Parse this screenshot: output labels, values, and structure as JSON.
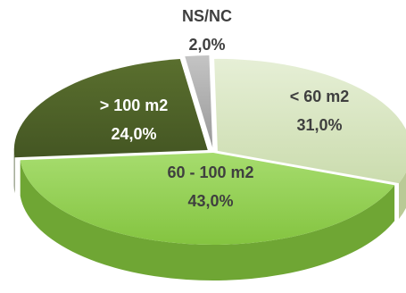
{
  "chart_data": {
    "type": "pie",
    "style": "3d-exploded",
    "slices": [
      {
        "name": "< 60 m2",
        "value": 31.0,
        "label_value": "31,0%",
        "color": "#d7e4bd"
      },
      {
        "name": "60 - 100 m2",
        "value": 43.0,
        "label_value": "43,0%",
        "color": "#92d050"
      },
      {
        "name": "> 100 m2",
        "value": 24.0,
        "label_value": "24,0%",
        "color": "#4f6228"
      },
      {
        "name": "NS/NC",
        "value": 2.0,
        "label_value": "2,0%",
        "color": "#a6a6a6"
      }
    ]
  }
}
